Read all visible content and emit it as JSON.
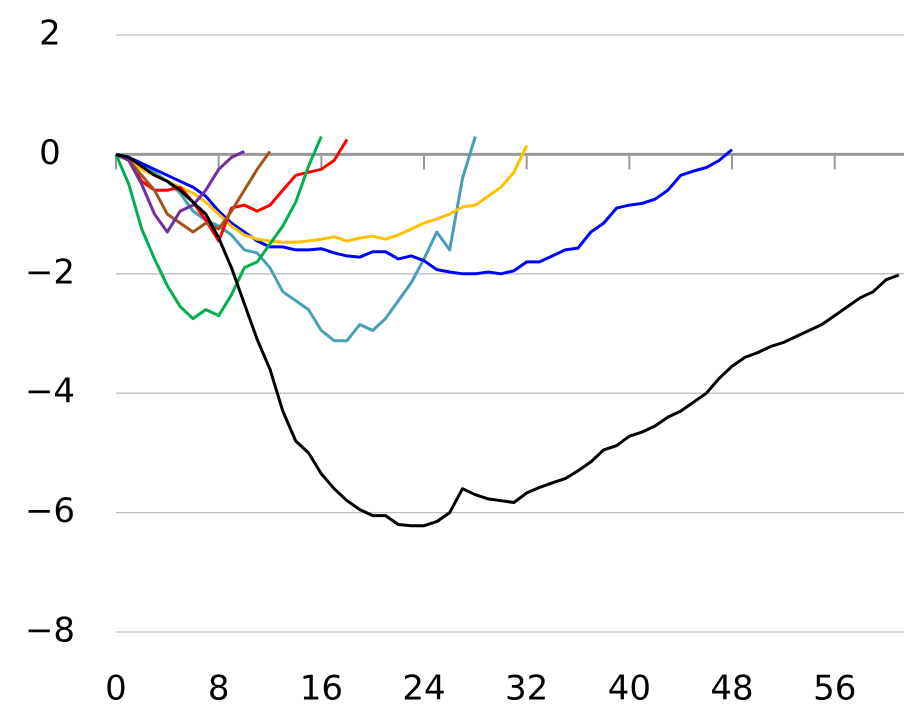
{
  "chart_data": {
    "type": "line",
    "x": [
      0,
      1,
      2,
      3,
      4,
      5,
      6,
      7,
      8,
      9,
      10,
      11,
      12,
      13,
      14,
      15,
      16,
      17,
      18,
      19,
      20,
      21,
      22,
      23,
      24,
      25,
      26,
      27,
      28,
      29,
      30,
      31,
      32,
      33,
      34,
      35,
      36,
      37,
      38,
      39,
      40,
      41,
      42,
      43,
      44,
      45,
      46,
      47,
      48,
      49,
      50,
      51,
      52,
      53,
      54,
      55,
      56,
      57,
      58,
      59,
      60,
      61
    ],
    "series": [
      {
        "color": "#4a9fb5",
        "values": [
          0,
          -0.05,
          -0.15,
          -0.3,
          -0.45,
          -0.65,
          -0.95,
          -1.1,
          -1.2,
          -1.35,
          -1.6,
          -1.65,
          -1.9,
          -2.3,
          -2.45,
          -2.6,
          -2.95,
          -3.12,
          -3.12,
          -2.85,
          -2.95,
          -2.75,
          -2.45,
          -2.15,
          -1.75,
          -1.3,
          -1.6,
          -0.4,
          0.3,
          null,
          null,
          null,
          null,
          null,
          null,
          null,
          null,
          null,
          null,
          null,
          null,
          null,
          null,
          null,
          null,
          null,
          null,
          null,
          null,
          null,
          null,
          null,
          null,
          null,
          null,
          null,
          null,
          null,
          null,
          null,
          null,
          null
        ]
      },
      {
        "color": "#0000ff",
        "values": [
          0,
          -0.05,
          -0.15,
          -0.25,
          -0.35,
          -0.45,
          -0.55,
          -0.7,
          -0.95,
          -1.15,
          -1.3,
          -1.45,
          -1.55,
          -1.55,
          -1.6,
          -1.6,
          -1.58,
          -1.65,
          -1.7,
          -1.72,
          -1.63,
          -1.63,
          -1.75,
          -1.7,
          -1.78,
          -1.93,
          -1.97,
          -2.0,
          -2.0,
          -1.97,
          -2.0,
          -1.95,
          -1.8,
          -1.8,
          -1.7,
          -1.6,
          -1.57,
          -1.3,
          -1.15,
          -0.9,
          -0.85,
          -0.82,
          -0.75,
          -0.6,
          -0.35,
          -0.28,
          -0.22,
          -0.1,
          0.08,
          null,
          null,
          null,
          null,
          null,
          null,
          null,
          null,
          null,
          null,
          null,
          null,
          null
        ]
      },
      {
        "color": "#ffc000",
        "values": [
          0,
          -0.1,
          -0.25,
          -0.35,
          -0.45,
          -0.55,
          -0.65,
          -0.8,
          -1.0,
          -1.2,
          -1.35,
          -1.42,
          -1.45,
          -1.47,
          -1.47,
          -1.45,
          -1.42,
          -1.38,
          -1.45,
          -1.4,
          -1.37,
          -1.42,
          -1.35,
          -1.25,
          -1.15,
          -1.08,
          -1.0,
          -0.88,
          -0.85,
          -0.7,
          -0.55,
          -0.3,
          0.15,
          null,
          null,
          null,
          null,
          null,
          null,
          null,
          null,
          null,
          null,
          null,
          null,
          null,
          null,
          null,
          null,
          null,
          null,
          null,
          null,
          null,
          null,
          null,
          null,
          null,
          null,
          null,
          null,
          null
        ]
      },
      {
        "color": "#ff0000",
        "values": [
          0,
          -0.1,
          -0.45,
          -0.6,
          -0.6,
          -0.55,
          -0.8,
          -1.1,
          -1.45,
          -0.9,
          -0.85,
          -0.95,
          -0.85,
          -0.6,
          -0.35,
          -0.3,
          -0.25,
          -0.1,
          0.25,
          null,
          null,
          null,
          null,
          null,
          null,
          null,
          null,
          null,
          null,
          null,
          null,
          null,
          null,
          null,
          null,
          null,
          null,
          null,
          null,
          null,
          null,
          null,
          null,
          null,
          null,
          null,
          null,
          null,
          null,
          null,
          null,
          null,
          null,
          null,
          null,
          null,
          null,
          null,
          null,
          null,
          null,
          null
        ]
      },
      {
        "color": "#00b050",
        "values": [
          0,
          -0.5,
          -1.25,
          -1.75,
          -2.2,
          -2.55,
          -2.75,
          -2.6,
          -2.7,
          -2.35,
          -1.9,
          -1.8,
          -1.5,
          -1.2,
          -0.8,
          -0.2,
          0.3,
          null,
          null,
          null,
          null,
          null,
          null,
          null,
          null,
          null,
          null,
          null,
          null,
          null,
          null,
          null,
          null,
          null,
          null,
          null,
          null,
          null,
          null,
          null,
          null,
          null,
          null,
          null,
          null,
          null,
          null,
          null,
          null,
          null,
          null,
          null,
          null,
          null,
          null,
          null,
          null,
          null,
          null,
          null,
          null,
          null
        ]
      },
      {
        "color": "#a5521b",
        "values": [
          0,
          -0.1,
          -0.35,
          -0.6,
          -1.0,
          -1.15,
          -1.3,
          -1.15,
          -1.25,
          -0.95,
          -0.6,
          -0.25,
          0.05,
          null,
          null,
          null,
          null,
          null,
          null,
          null,
          null,
          null,
          null,
          null,
          null,
          null,
          null,
          null,
          null,
          null,
          null,
          null,
          null,
          null,
          null,
          null,
          null,
          null,
          null,
          null,
          null,
          null,
          null,
          null,
          null,
          null,
          null,
          null,
          null,
          null,
          null,
          null,
          null,
          null,
          null,
          null,
          null,
          null,
          null,
          null,
          null,
          null
        ]
      },
      {
        "color": "#7030a0",
        "values": [
          0,
          -0.1,
          -0.5,
          -1.0,
          -1.3,
          -0.95,
          -0.85,
          -0.6,
          -0.25,
          -0.05,
          0.05,
          null,
          null,
          null,
          null,
          null,
          null,
          null,
          null,
          null,
          null,
          null,
          null,
          null,
          null,
          null,
          null,
          null,
          null,
          null,
          null,
          null,
          null,
          null,
          null,
          null,
          null,
          null,
          null,
          null,
          null,
          null,
          null,
          null,
          null,
          null,
          null,
          null,
          null,
          null,
          null,
          null,
          null,
          null,
          null,
          null,
          null,
          null,
          null,
          null,
          null,
          null
        ]
      },
      {
        "color": "#000000",
        "values": [
          0,
          -0.05,
          -0.2,
          -0.35,
          -0.45,
          -0.6,
          -0.8,
          -1.0,
          -1.4,
          -1.9,
          -2.5,
          -3.1,
          -3.6,
          -4.3,
          -4.8,
          -5.0,
          -5.35,
          -5.6,
          -5.8,
          -5.95,
          -6.05,
          -6.05,
          -6.2,
          -6.22,
          -6.22,
          -6.15,
          -6.0,
          -5.6,
          -5.7,
          -5.77,
          -5.8,
          -5.83,
          -5.67,
          -5.58,
          -5.5,
          -5.43,
          -5.3,
          -5.15,
          -4.95,
          -4.88,
          -4.72,
          -4.65,
          -4.55,
          -4.4,
          -4.3,
          -4.15,
          -4.0,
          -3.75,
          -3.55,
          -3.4,
          -3.32,
          -3.22,
          -3.15,
          -3.05,
          -2.95,
          -2.85,
          -2.7,
          -2.55,
          -2.4,
          -2.3,
          -2.1,
          -2.02
        ]
      }
    ],
    "xlim": [
      0,
      61.4
    ],
    "xticks": [
      0,
      8,
      16,
      24,
      32,
      40,
      48,
      56
    ],
    "ylim": [
      -8,
      2
    ],
    "yticks": [
      {
        "value": -8,
        "label": "−8"
      },
      {
        "value": -6,
        "label": "−6"
      },
      {
        "value": -4,
        "label": "−4"
      },
      {
        "value": -2,
        "label": "−2"
      },
      0,
      2
    ],
    "grid": true
  }
}
